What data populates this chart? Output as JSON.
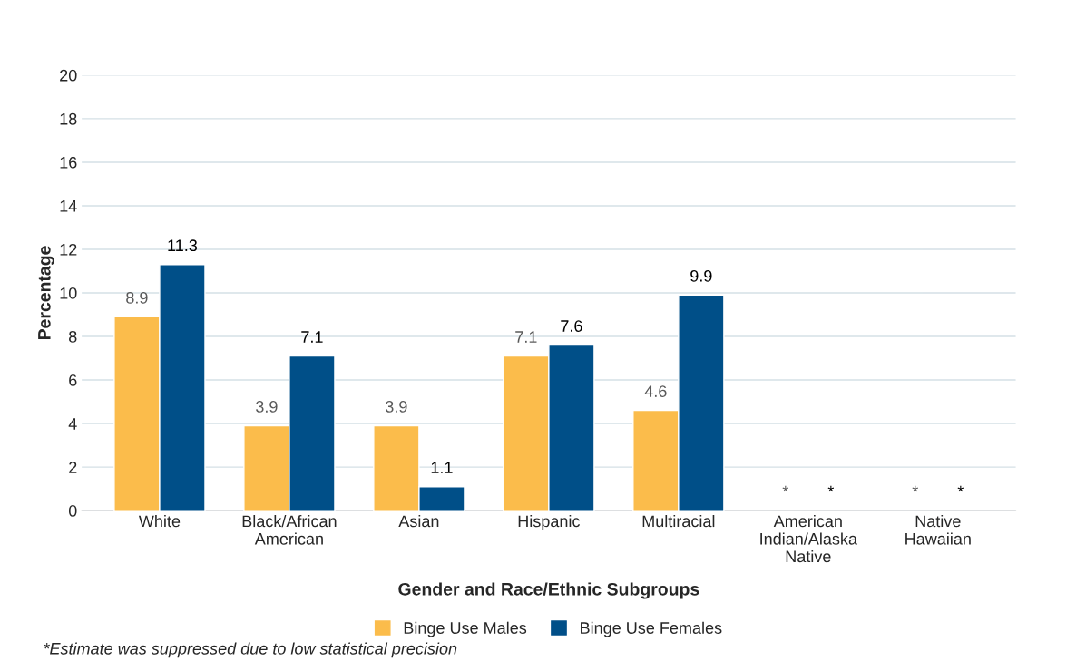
{
  "chart_data": {
    "type": "bar",
    "xlabel": "Gender and Race/Ethnic Subgroups",
    "ylabel": "Percentage",
    "categories": [
      "White",
      "Black/African\nAmerican",
      "Asian",
      "Hispanic",
      "Multiracial",
      "American\nIndian/Alaska\nNative",
      "Native\nHawaiian"
    ],
    "series": [
      {
        "name": "Binge Use Males",
        "color": "#fbbc4b",
        "values": [
          8.9,
          3.9,
          3.9,
          7.1,
          4.6,
          null,
          null
        ],
        "value_labels": [
          "8.9",
          "3.9",
          "3.9",
          "7.1",
          "4.6",
          "*",
          "*"
        ]
      },
      {
        "name": "Binge Use Females",
        "color": "#004f88",
        "values": [
          11.3,
          7.1,
          1.1,
          7.6,
          9.9,
          null,
          null
        ],
        "value_labels": [
          "11.3",
          "7.1",
          "1.1",
          "7.6",
          "9.9",
          "*",
          "*"
        ]
      }
    ],
    "ylim": [
      0,
      20
    ],
    "yticks": [
      0,
      2,
      4,
      6,
      8,
      10,
      12,
      14,
      16,
      18,
      20
    ],
    "grid": "y",
    "legend": "bottom",
    "annotations": [
      "*Estimate was suppressed due to low statistical precision"
    ]
  }
}
